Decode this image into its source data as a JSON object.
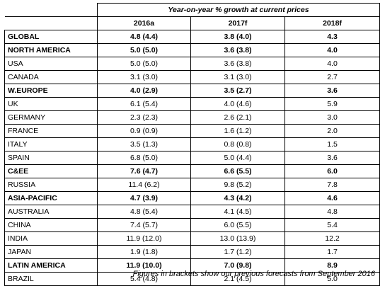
{
  "table": {
    "caption": "Year-on-year % growth at current prices",
    "headers": [
      "2016a",
      "2017f",
      "2018f"
    ],
    "rows": [
      {
        "name": "GLOBAL",
        "bold": true,
        "y2016": "4.8 (4.4)",
        "y2017": "3.8 (4.0)",
        "y2018": "4.3"
      },
      {
        "name": "NORTH AMERICA",
        "bold": true,
        "y2016": "5.0 (5.0)",
        "y2017": "3.6 (3.8)",
        "y2018": "4.0"
      },
      {
        "name": "USA",
        "bold": false,
        "y2016": "5.0 (5.0)",
        "y2017": "3.6 (3.8)",
        "y2018": "4.0"
      },
      {
        "name": "CANADA",
        "bold": false,
        "y2016": "3.1 (3.0)",
        "y2017": "3.1 (3.0)",
        "y2018": "2.7"
      },
      {
        "name": "W.EUROPE",
        "bold": true,
        "y2016": "4.0 (2.9)",
        "y2017": "3.5 (2.7)",
        "y2018": "3.6"
      },
      {
        "name": "UK",
        "bold": false,
        "y2016": "6.1 (5.4)",
        "y2017": "4.0 (4.6)",
        "y2018": "5.9"
      },
      {
        "name": "GERMANY",
        "bold": false,
        "y2016": "2.3 (2.3)",
        "y2017": "2.6 (2.1)",
        "y2018": "3.0"
      },
      {
        "name": "FRANCE",
        "bold": false,
        "y2016": "0.9 (0.9)",
        "y2017": "1.6 (1.2)",
        "y2018": "2.0"
      },
      {
        "name": "ITALY",
        "bold": false,
        "y2016": "3.5 (1.3)",
        "y2017": "0.8 (0.8)",
        "y2018": "1.5"
      },
      {
        "name": "SPAIN",
        "bold": false,
        "y2016": "6.8 (5.0)",
        "y2017": "5.0 (4.4)",
        "y2018": "3.6"
      },
      {
        "name": "C&EE",
        "bold": true,
        "y2016": "7.6 (4.7)",
        "y2017": "6.6 (5.5)",
        "y2018": "6.0"
      },
      {
        "name": "RUSSIA",
        "bold": false,
        "y2016": "11.4 (6.2)",
        "y2017": "9.8 (5.2)",
        "y2018": "7.8"
      },
      {
        "name": "ASIA-PACIFIC",
        "bold": true,
        "y2016": "4.7 (3.9)",
        "y2017": "4.3 (4.2)",
        "y2018": "4.6"
      },
      {
        "name": "AUSTRALIA",
        "bold": false,
        "y2016": "4.8 (5.4)",
        "y2017": "4.1 (4.5)",
        "y2018": "4.8"
      },
      {
        "name": "CHINA",
        "bold": false,
        "y2016": "7.4 (5.7)",
        "y2017": "6.0 (5.5)",
        "y2018": "5.4"
      },
      {
        "name": "INDIA",
        "bold": false,
        "y2016": "11.9 (12.0)",
        "y2017": "13.0 (13.9)",
        "y2018": "12.2"
      },
      {
        "name": "JAPAN",
        "bold": false,
        "y2016": "1.9 (1.8)",
        "y2017": "1.7 (1.2)",
        "y2018": "1.7"
      },
      {
        "name": "LATIN AMERICA",
        "bold": true,
        "y2016": "11.9 (10.0)",
        "y2017": "7.0 (9.8)",
        "y2018": "8.9"
      },
      {
        "name": "BRAZIL",
        "bold": false,
        "y2016": "5.4 (4.8)",
        "y2017": "2.1 (4.5)",
        "y2018": "5.0"
      }
    ]
  },
  "footnote": "Figures in brackets show our previous forecasts from September 2016"
}
